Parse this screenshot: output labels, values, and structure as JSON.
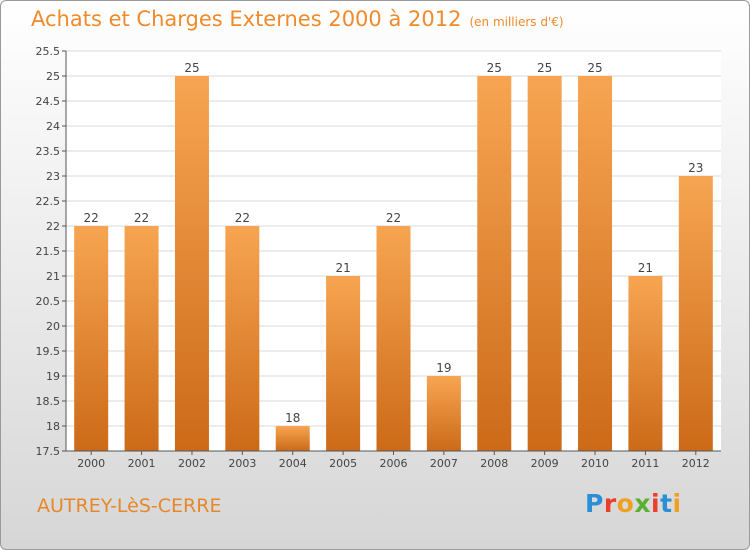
{
  "title": "Achats et Charges Externes 2000 à 2012",
  "unit": "(en milliers d'€)",
  "commune": "AUTREY-LèS-CERRE",
  "logo": {
    "letters": [
      "P",
      "r",
      "o",
      "x",
      "i",
      "t",
      "i"
    ],
    "colors": [
      "#2a8fd6",
      "#e8402a",
      "#f0a020",
      "#5ab030",
      "#e8402a",
      "#2a8fd6",
      "#f0a020"
    ]
  },
  "colors": {
    "accent": "#f08a2a",
    "bar_light": "#f7a552",
    "bar_dark": "#cc6a18"
  },
  "chart_data": {
    "type": "bar",
    "categories": [
      "2000",
      "2001",
      "2002",
      "2003",
      "2004",
      "2005",
      "2006",
      "2007",
      "2008",
      "2009",
      "2010",
      "2011",
      "2012"
    ],
    "values": [
      22,
      22,
      25,
      22,
      18,
      21,
      22,
      19,
      25,
      25,
      25,
      21,
      23
    ],
    "yticks": [
      "17.5",
      "18",
      "18.5",
      "19",
      "19.5",
      "20",
      "20.5",
      "21",
      "21.5",
      "22",
      "22.5",
      "23",
      "23.5",
      "24",
      "24.5",
      "25",
      "25.5"
    ],
    "ylim": [
      17.5,
      25.5
    ],
    "grid": true
  }
}
